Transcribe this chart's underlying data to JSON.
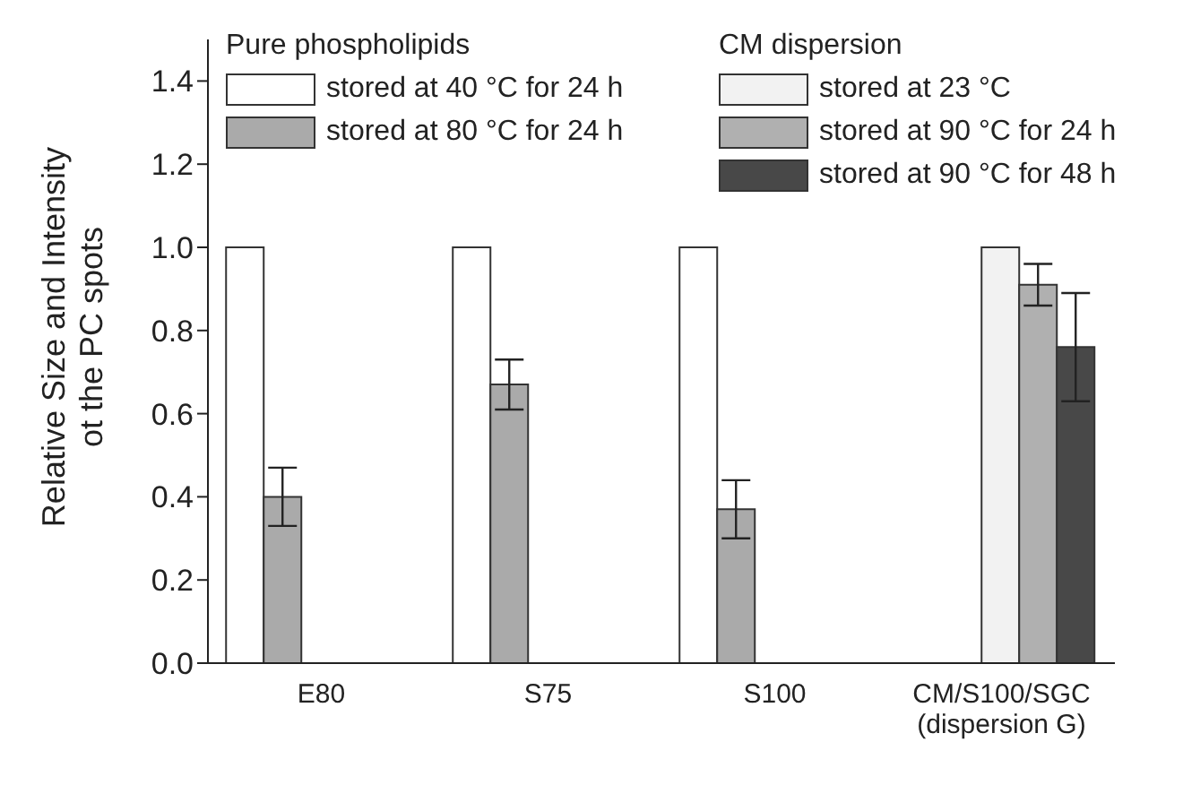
{
  "chart_data": {
    "type": "bar",
    "ylabel": "Relative Size and Intensity\not the PC spots",
    "legend_title": "Pure phospholipids",
    "annotations": [
      "CM dispersion"
    ],
    "categories": [
      "E80",
      "S75",
      "S100",
      "CM/S100/SGC\n(dispersion G)"
    ],
    "series": [
      {
        "name": "stored at 40 °C for 24 h",
        "color": "#ffffff",
        "values": [
          1.0,
          1.0,
          1.0,
          null
        ]
      },
      {
        "name": "stored at 80 °C for 24 h",
        "color": "#aaaaaa",
        "values": [
          0.4,
          0.67,
          0.37,
          null
        ],
        "errors": [
          0.07,
          0.06,
          0.07,
          null
        ]
      },
      {
        "name": "stored at 23 °C",
        "color": "#f2f2f2",
        "values": [
          null,
          null,
          null,
          1.0
        ]
      },
      {
        "name": "stored at 90 °C for 24 h",
        "color": "#b0b0b0",
        "values": [
          null,
          null,
          null,
          0.91
        ],
        "errors": [
          null,
          null,
          null,
          0.05
        ]
      },
      {
        "name": "stored at 90 °C for 48 h",
        "color": "#484848",
        "values": [
          null,
          null,
          null,
          0.76
        ],
        "errors": [
          null,
          null,
          null,
          0.13
        ]
      }
    ],
    "ylim": [
      0,
      1.5
    ],
    "yticks": [
      {
        "value": 0,
        "label": "0.0"
      },
      {
        "value": 0.2,
        "label": "0.2"
      },
      {
        "value": 0.4,
        "label": "0.4"
      },
      {
        "value": 0.6,
        "label": "0.6"
      },
      {
        "value": 0.8,
        "label": "0.8"
      },
      {
        "value": 1,
        "label": "1.0"
      },
      {
        "value": 1.2,
        "label": "1.2"
      },
      {
        "value": 1.4,
        "label": "1.4"
      }
    ],
    "grid": false,
    "legend": "top"
  }
}
